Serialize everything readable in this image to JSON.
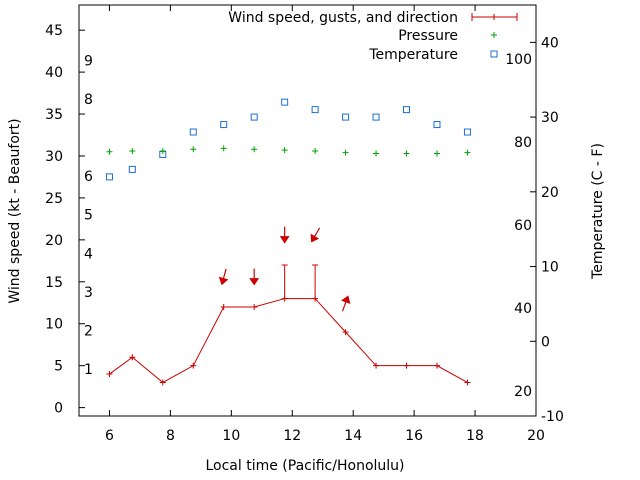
{
  "chart_data": {
    "type": "line",
    "xlabel": "Local time (Pacific/Honolulu)",
    "ylabel_left": "Wind speed (kt - Beaufort)",
    "ylabel_right": "Temperature (C - F)",
    "xlim": [
      5,
      20
    ],
    "ylim_left": [
      -1,
      48
    ],
    "ylim_right": [
      -10,
      45
    ],
    "x_ticks": [
      6,
      8,
      10,
      12,
      14,
      16,
      18,
      20
    ],
    "y_ticks_left": [
      0,
      5,
      10,
      15,
      20,
      25,
      30,
      35,
      40,
      45
    ],
    "y_ticks_right_c": [
      -10,
      0,
      10,
      20,
      30,
      40
    ],
    "fahrenheit_labels": [
      {
        "value": 20,
        "label": "20"
      },
      {
        "value": 40,
        "label": "40"
      },
      {
        "value": 60,
        "label": "60"
      },
      {
        "value": 80,
        "label": "80"
      },
      {
        "value": 100,
        "label": "100"
      }
    ],
    "beaufort_labels": [
      {
        "value": 1,
        "label": "1"
      },
      {
        "value": 2,
        "label": "2"
      },
      {
        "value": 3,
        "label": "3"
      },
      {
        "value": 4,
        "label": "4"
      },
      {
        "value": 5,
        "label": "5"
      },
      {
        "value": 6,
        "label": "6"
      },
      {
        "value": 8,
        "label": "8"
      },
      {
        "value": 9,
        "label": "9"
      }
    ],
    "legend": {
      "wind": "Wind speed, gusts, and direction",
      "pressure": "Pressure",
      "temperature": "Temperature"
    },
    "colors": {
      "wind": "#cc0000",
      "pressure": "#00a000",
      "temperature": "#1a6fd0"
    },
    "series": [
      {
        "name": "Wind speed",
        "x": [
          6,
          6.75,
          7.75,
          8.75,
          9.75,
          10.75,
          11.75,
          12.75,
          13.75,
          14.75,
          15.75,
          16.75,
          17.75
        ],
        "values": [
          4,
          6,
          3,
          5,
          12,
          12,
          13,
          13,
          9,
          5,
          5,
          5,
          3
        ]
      },
      {
        "name": "Gusts",
        "x": [
          11.75,
          12.75
        ],
        "values": [
          17,
          17
        ]
      },
      {
        "name": "Wind direction arrows",
        "x": [
          9.75,
          10.75,
          11.75,
          12.75,
          13.75
        ],
        "y": [
          15.5,
          15.5,
          20.5,
          20.5,
          12.5
        ],
        "direction_deg": [
          15,
          0,
          0,
          30,
          200
        ]
      },
      {
        "name": "Pressure",
        "x": [
          6,
          6.75,
          7.75,
          8.75,
          9.75,
          10.75,
          11.75,
          12.75,
          13.75,
          14.75,
          15.75,
          16.75,
          17.75
        ],
        "values": [
          30.5,
          30.6,
          30.6,
          30.8,
          30.9,
          30.8,
          30.7,
          30.6,
          30.4,
          30.3,
          30.3,
          30.3,
          30.4
        ]
      },
      {
        "name": "Temperature (C)",
        "x": [
          6,
          6.75,
          7.75,
          8.75,
          9.75,
          10.75,
          11.75,
          12.75,
          13.75,
          14.75,
          15.75,
          16.75,
          17.75
        ],
        "values": [
          22,
          23,
          25,
          28,
          29,
          30,
          32,
          31,
          30,
          30,
          31,
          29,
          28
        ]
      }
    ]
  }
}
